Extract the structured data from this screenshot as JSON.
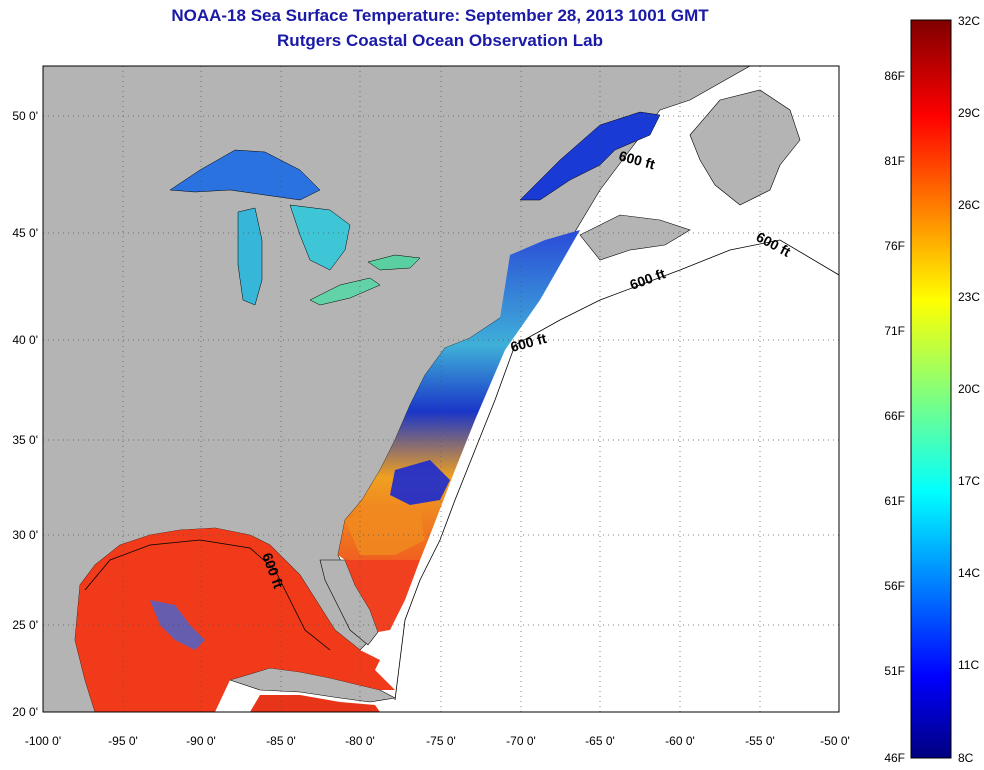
{
  "header": {
    "title": "NOAA-18 Sea Surface Temperature:  September 28, 2013 1001 GMT",
    "subtitle": "Rutgers Coastal Ocean Observation Lab"
  },
  "map": {
    "lon_range": [
      -100,
      -50
    ],
    "lat_range": [
      20,
      52.5
    ],
    "x_ticks": [
      "-100 0'",
      "-95 0'",
      "-90 0'",
      "-85 0'",
      "-80 0'",
      "-75 0'",
      "-70 0'",
      "-65 0'",
      "-60 0'",
      "-55 0'",
      "-50 0'"
    ],
    "y_ticks": [
      "20 0'",
      "25 0'",
      "30 0'",
      "35 0'",
      "40 0'",
      "45 0'",
      "50 0'"
    ],
    "grid": "dotted",
    "contour_labels": [
      "600 ft",
      "600 ft",
      "600 ft",
      "600 ft",
      "600 ft"
    ],
    "colors": {
      "land": "#b4b4b4",
      "no_data": "#ffffff",
      "gulf": "#f03a1a",
      "cold": "#1a3ad6"
    }
  },
  "colorbar": {
    "celsius_labels": [
      "32C",
      "29C",
      "26C",
      "23C",
      "20C",
      "17C",
      "14C",
      "11C",
      "8C"
    ],
    "fahrenheit_labels": [
      "86F",
      "81F",
      "76F",
      "71F",
      "66F",
      "61F",
      "56F",
      "51F",
      "46F"
    ],
    "range_c": [
      8,
      32
    ],
    "colormap": "jet"
  }
}
